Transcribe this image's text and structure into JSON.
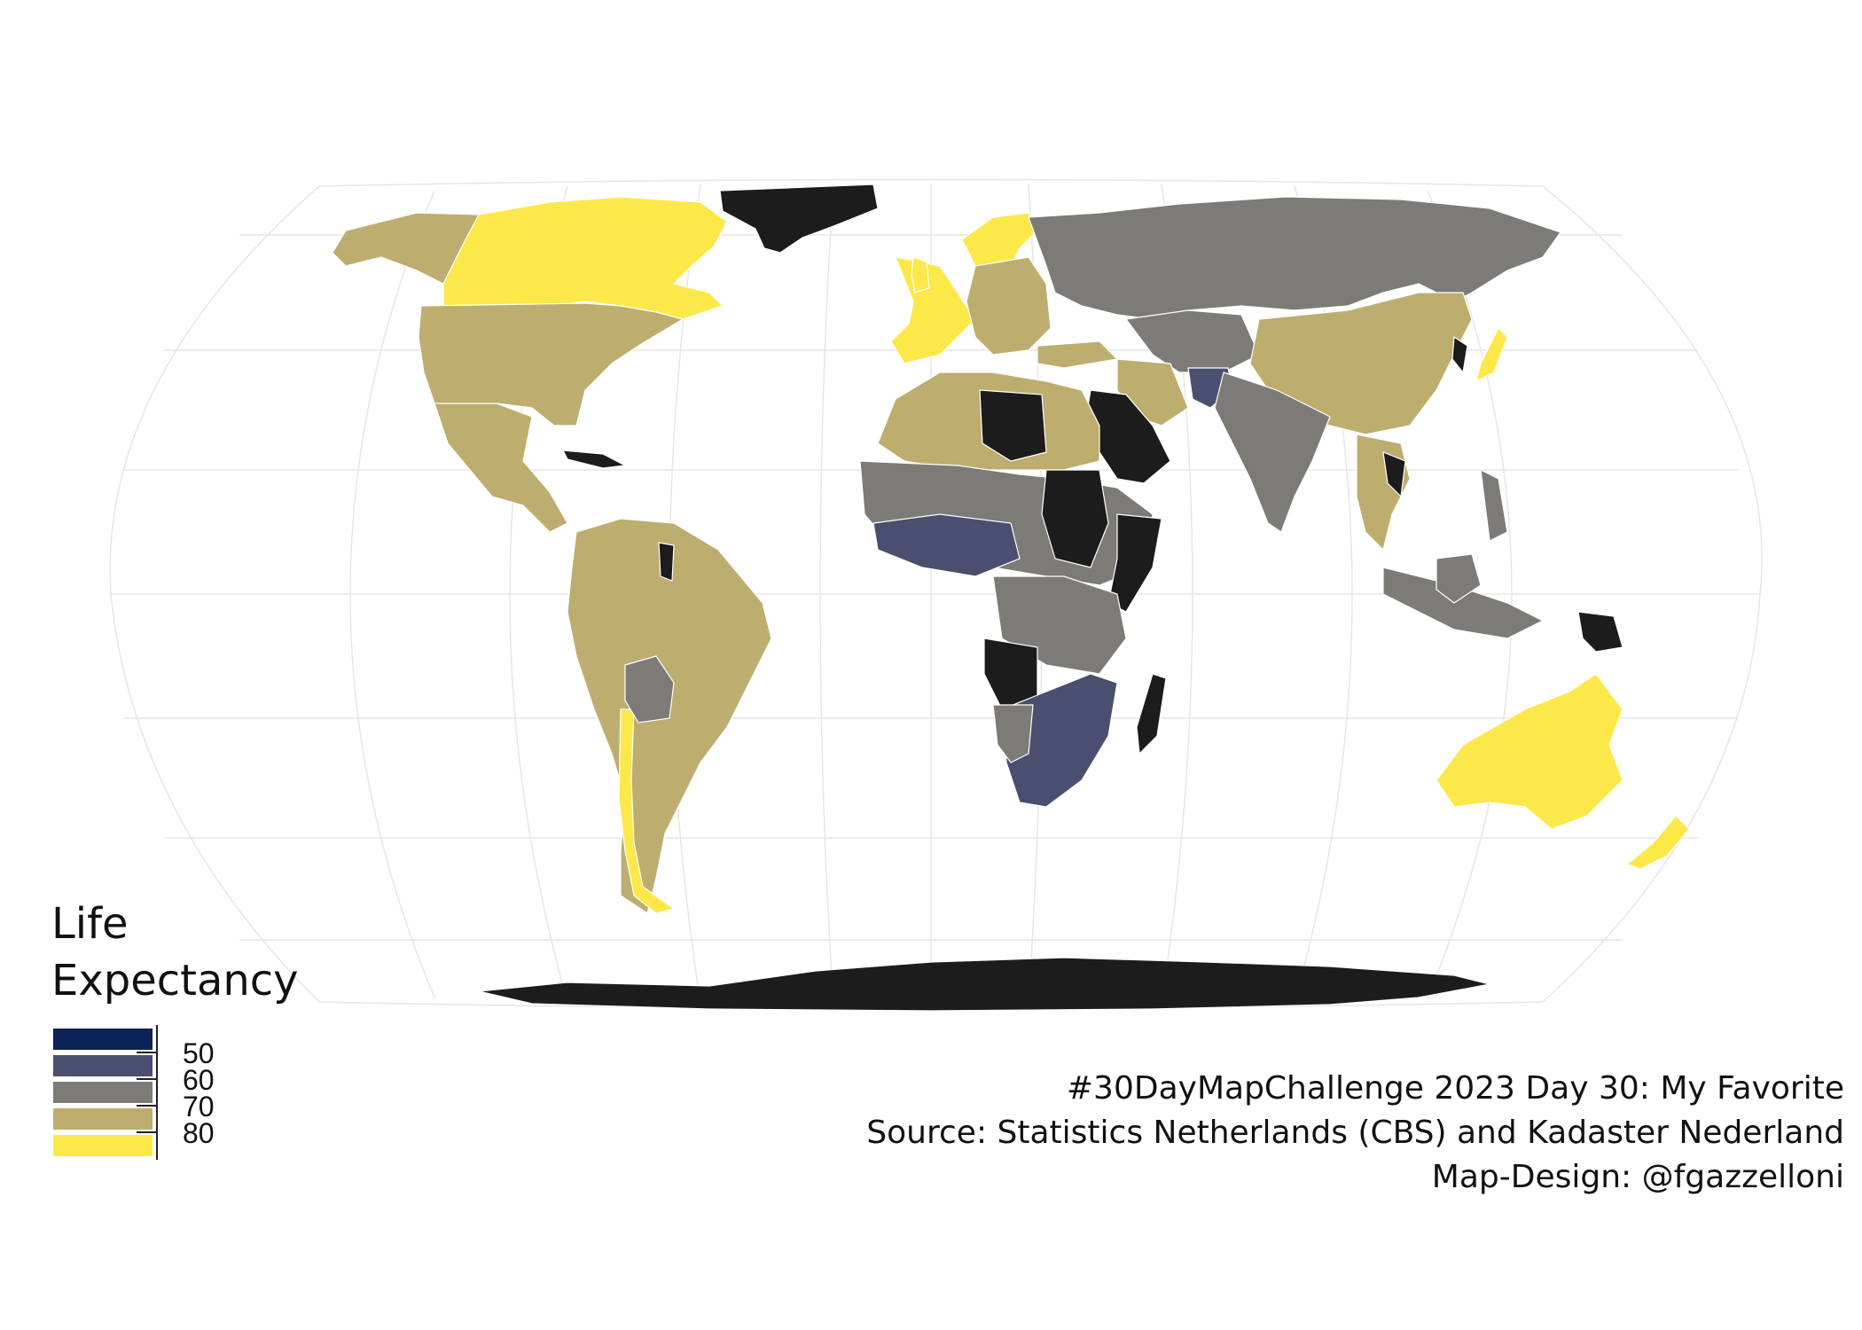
{
  "map": {
    "projection": "Equal Earth",
    "graticule": true,
    "palette": {
      "50": "#0b2355",
      "60": "#4a4f70",
      "70": "#7c7b78",
      "80": "#bdae6f",
      "90": "#fde84a",
      "no_data": "#1c1c1c"
    }
  },
  "legend": {
    "title": "Life\nExpectancy",
    "title_line1": "Life",
    "title_line2": "Expectancy",
    "breaks": [
      "50",
      "60",
      "70",
      "80"
    ],
    "colors": [
      "#0b2355",
      "#4a4f70",
      "#7c7b78",
      "#bdae6f",
      "#fde84a"
    ]
  },
  "caption": {
    "line1": "#30DayMapChallenge 2023 Day 30: My Favorite",
    "line2": "Source: Statistics Netherlands (CBS) and Kadaster Nederland",
    "line3": "Map-Design: @fgazzelloni"
  }
}
